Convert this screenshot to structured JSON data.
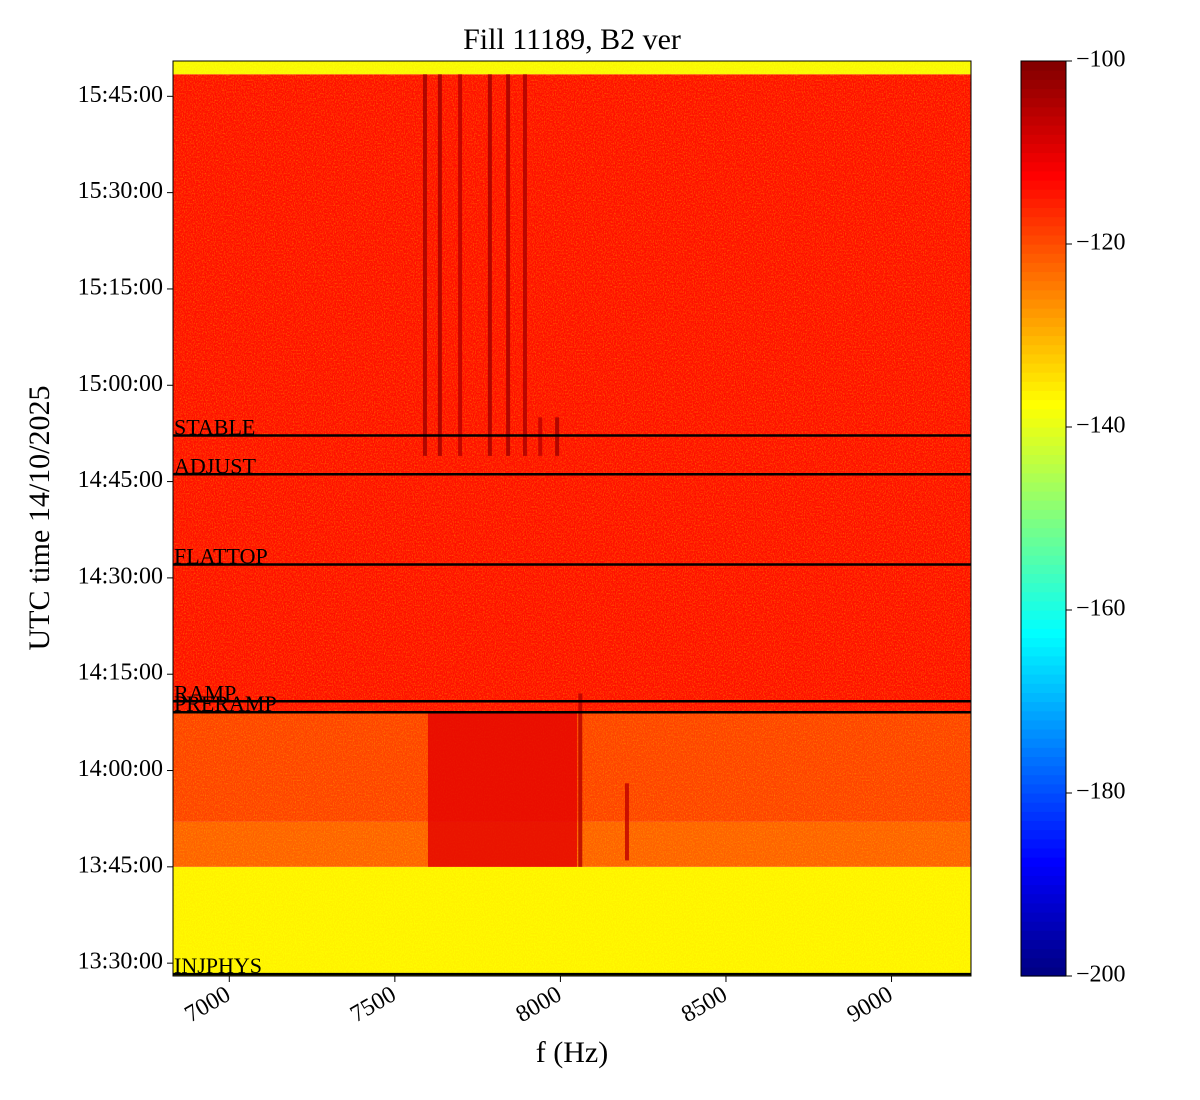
{
  "chart_data": {
    "type": "spectrogram",
    "title": "Fill 11189, B2 ver",
    "xlabel": "f (Hz)",
    "ylabel": "UTC time 14/10/2025",
    "xlim": [
      6830,
      9240
    ],
    "xticks": [
      7000,
      7500,
      8000,
      8500,
      9000
    ],
    "ylim": [
      "13:28:00",
      "15:50:30"
    ],
    "yticks": [
      "13:30:00",
      "13:45:00",
      "14:00:00",
      "14:15:00",
      "14:30:00",
      "14:45:00",
      "15:00:00",
      "15:15:00",
      "15:30:00",
      "15:45:00"
    ],
    "colormap": "jet",
    "clim": [
      -200,
      -100
    ],
    "cticks": [
      {
        "value": -200,
        "label": "−200"
      },
      {
        "value": -180,
        "label": "−180"
      },
      {
        "value": -160,
        "label": "−160"
      },
      {
        "value": -140,
        "label": "−140"
      },
      {
        "value": -120,
        "label": "−120"
      },
      {
        "value": -100,
        "label": "−100"
      }
    ],
    "time_bins": [
      "13:28:00",
      "13:45:00",
      "13:52:00",
      "14:09:00",
      "15:48:26",
      "15:50:30"
    ],
    "levels": [
      -137,
      -122,
      -119,
      -114,
      -138
    ],
    "features": [
      {
        "f": [
          7585,
          7597
        ],
        "start": "14:49:00",
        "end": "15:48:26",
        "level": -103
      },
      {
        "f": [
          7630,
          7642
        ],
        "start": "14:49:00",
        "end": "15:48:26",
        "level": -103
      },
      {
        "f": [
          7691,
          7703
        ],
        "start": "14:49:00",
        "end": "15:48:26",
        "level": -105
      },
      {
        "f": [
          7781,
          7793
        ],
        "start": "14:49:00",
        "end": "15:48:26",
        "level": -103
      },
      {
        "f": [
          7836,
          7848
        ],
        "start": "14:49:00",
        "end": "15:48:26",
        "level": -103
      },
      {
        "f": [
          7887,
          7899
        ],
        "start": "14:49:00",
        "end": "15:48:26",
        "level": -104
      },
      {
        "f": [
          7933,
          7945
        ],
        "start": "14:49:00",
        "end": "14:55:00",
        "level": -106
      },
      {
        "f": [
          7984,
          7996
        ],
        "start": "14:49:00",
        "end": "14:55:00",
        "level": -103
      },
      {
        "f": [
          7600,
          8050
        ],
        "start": "13:45:00",
        "end": "14:09:00",
        "level": -110
      },
      {
        "f": [
          8054,
          8066
        ],
        "start": "13:45:00",
        "end": "14:12:00",
        "level": -105
      },
      {
        "f": [
          8195,
          8207
        ],
        "start": "13:46:00",
        "end": "13:58:00",
        "level": -106
      }
    ],
    "annotations": [
      {
        "label": "STABLE",
        "time": "14:52:10"
      },
      {
        "label": "ADJUST",
        "time": "14:46:08"
      },
      {
        "label": "FLATTOP",
        "time": "14:32:05"
      },
      {
        "label": "RAMP",
        "time": "14:10:47"
      },
      {
        "label": "PRERAMP",
        "time": "14:09:05"
      },
      {
        "label": "INJPHYS",
        "time": "13:28:18"
      }
    ]
  }
}
